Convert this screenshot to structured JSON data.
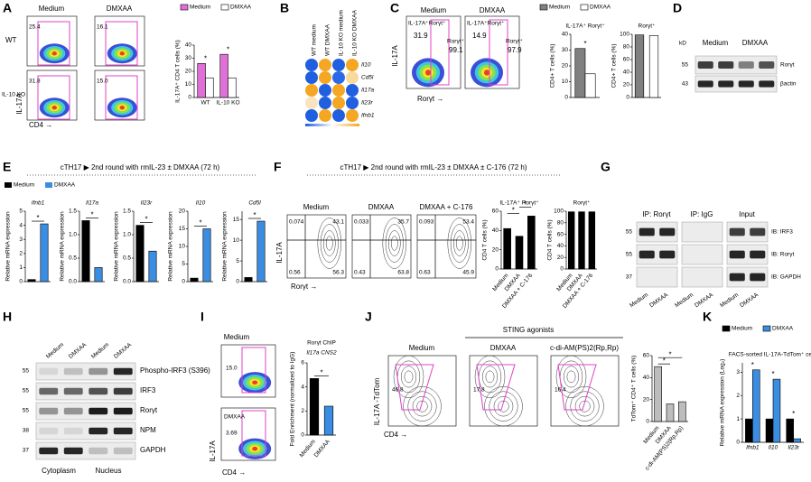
{
  "A": {
    "label": "A",
    "columns": [
      "Medium",
      "DMXAA"
    ],
    "rows": [
      "WT",
      "IL-10 KO"
    ],
    "y_axis": "IL-17A",
    "x_axis": "CD4 →",
    "gates": [
      "25.4",
      "16.1",
      "31.8",
      "15.0"
    ],
    "chart": {
      "ylabel": "IL-17A⁺ CD4 T cells (%)",
      "categories": [
        "WT",
        "IL-10 KO"
      ],
      "ylim": [
        0,
        40
      ],
      "yticks": [
        0,
        10,
        20,
        30,
        40
      ],
      "series": [
        {
          "name": "Medium",
          "color": "#e070d8",
          "values": [
            26,
            33
          ]
        },
        {
          "name": "DMXAA",
          "color": "#ffffff",
          "values": [
            15,
            15
          ]
        }
      ],
      "sig": "*"
    }
  },
  "B": {
    "label": "B",
    "columns": [
      "WT medium",
      "WT DMXAA",
      "IL-10 KO medium",
      "IL-10 KO DMXAA"
    ],
    "rows": [
      "Il10",
      "Cd5l",
      "Il17a",
      "Il23r",
      "Ifnb1"
    ],
    "colors": [
      [
        "#1f5fe0",
        "#f5a623",
        "#1f5fe0",
        "#f5a623"
      ],
      [
        "#1f5fe0",
        "#f5a623",
        "#2a6ae8",
        "#f8d9a0"
      ],
      [
        "#f5a623",
        "#1f5fe0",
        "#f5a623",
        "#1f5fe0"
      ],
      [
        "#f8e4c0",
        "#1f5fe0",
        "#f5a623",
        "#1f5fe0"
      ],
      [
        "#1f5fe0",
        "#f5a623",
        "#1f5fe0",
        "#f5a623"
      ]
    ]
  },
  "C": {
    "label": "C",
    "columns": [
      "Medium",
      "DMXAA"
    ],
    "gate_label": "IL-17A⁺Rorγt⁺",
    "gate_label2": "Rorγt⁺",
    "gates": [
      [
        "31.9",
        "99.1"
      ],
      [
        "14.9",
        "97.9"
      ]
    ],
    "y_axis": "IL-17A",
    "x_axis": "Rorγt →",
    "chart1": {
      "title": "IL-17A⁺ Rorγt⁺",
      "ylabel": "CD4+ T cells (%)",
      "ylim": [
        0,
        40
      ],
      "yticks": [
        0,
        10,
        20,
        30,
        40
      ],
      "series": [
        {
          "name": "Medium",
          "color": "#808080",
          "values": [
            31
          ]
        },
        {
          "name": "DMXAA",
          "color": "#ffffff",
          "values": [
            15
          ]
        }
      ],
      "sig": "*"
    },
    "chart2": {
      "title": "Rorγt⁺",
      "ylabel": "CD4+ T cells (%)",
      "ylim": [
        0,
        100
      ],
      "yticks": [
        0,
        20,
        40,
        60,
        80,
        100
      ],
      "values": [
        99,
        98
      ],
      "colors": [
        "#808080",
        "#ffffff"
      ]
    }
  },
  "D": {
    "label": "D",
    "unit": "kD",
    "lanes": [
      "Medium",
      "DMXAA"
    ],
    "markers": [
      "55",
      "43"
    ],
    "blots": [
      "Rorγt",
      "βactin"
    ]
  },
  "E": {
    "label": "E",
    "title": "cTH17 ▶ 2nd round with rmIL-23 ± DMXAA (72 h)",
    "legend": [
      {
        "name": "Medium",
        "color": "#000000"
      },
      {
        "name": "DMXAA",
        "color": "#3a8de0"
      }
    ],
    "charts": [
      {
        "title": "Ifnb1",
        "ylabel": "Relative mRNA expression",
        "ylim": [
          0,
          5
        ],
        "yticks": [
          0,
          1,
          2,
          3,
          4,
          5
        ],
        "values": [
          0.15,
          4.1
        ],
        "sig": "*"
      },
      {
        "title": "Il17a",
        "ylabel": "Relative mRNA expression",
        "ylim": [
          0,
          1.5
        ],
        "yticks": [
          {
            "value": 0,
            "label": "0.0"
          },
          0.5,
          {
            "value": 1,
            "label": "1.0"
          },
          1.5
        ],
        "values": [
          1.3,
          0.3
        ],
        "sig": "*"
      },
      {
        "title": "Il23r",
        "ylabel": "Relative mRNA expression",
        "ylim": [
          0,
          1.5
        ],
        "yticks": [
          {
            "value": 0,
            "label": "0.0"
          },
          0.5,
          {
            "value": 1,
            "label": "1.0"
          },
          1.5
        ],
        "values": [
          1.2,
          0.65
        ],
        "sig": "*"
      },
      {
        "title": "Il10",
        "ylabel": "Relative mRNA expression",
        "ylim": [
          0,
          20
        ],
        "yticks": [
          0,
          5,
          10,
          15,
          20
        ],
        "values": [
          1,
          15
        ],
        "sig": "*"
      },
      {
        "title": "Cd5l",
        "ylabel": "Relative mRNA expression",
        "ylim": [
          0,
          17
        ],
        "yticks": [
          0,
          5,
          10,
          15
        ],
        "values": [
          1,
          14.6
        ],
        "sig": "*"
      }
    ]
  },
  "F": {
    "label": "F",
    "title": "cTH17 ▶ 2nd round with rmIL-23 ± DMXAA ± C-176 (72 h)",
    "columns": [
      "Medium",
      "DMXAA",
      "DMXAA + C-176"
    ],
    "quadrants": [
      [
        "0.074",
        "43.1",
        "0.56",
        "56.3"
      ],
      [
        "0.033",
        "35.7",
        "0.43",
        "63.8"
      ],
      [
        "0.093",
        "53.4",
        "0.63",
        "45.9"
      ]
    ],
    "y_axis": "IL-17A",
    "x_axis": "Rorγt →",
    "chart1": {
      "title": "IL-17A⁺ Rorγt⁺",
      "ylabel": "CD4 T cells (%)",
      "categories": [
        "Medium",
        "DMXAA",
        "DMXAA + C-176"
      ],
      "ylim": [
        0,
        60
      ],
      "yticks": [
        0,
        20,
        40,
        60
      ],
      "values": [
        42,
        34,
        55
      ],
      "color": "#000000",
      "sig": "*"
    },
    "chart2": {
      "title": "Rorγt⁺",
      "ylabel": "CD4 T cells (%)",
      "categories": [
        "Medium",
        "DMXAA",
        "DMXAA + C-176"
      ],
      "ylim": [
        0,
        100
      ],
      "yticks": [
        0,
        20,
        40,
        60,
        80,
        100
      ],
      "values": [
        99,
        99,
        99
      ],
      "color": "#000000"
    }
  },
  "G": {
    "label": "G",
    "groups": [
      "IP: Rorγt",
      "IP: IgG",
      "Input"
    ],
    "markers": [
      "55",
      "55",
      "37"
    ],
    "blots": [
      "IB: IRF3",
      "IB: Rorγt",
      "IB: GAPDH"
    ],
    "lanes": [
      "Medium",
      "DMXAA"
    ]
  },
  "H": {
    "label": "H",
    "lanes": [
      "Medium",
      "DMXAA",
      "Medium",
      "DMXAA"
    ],
    "markers": [
      "55",
      "55",
      "55",
      "38",
      "37"
    ],
    "blots": [
      "Phospho-IRF3 (S396)",
      "IRF3",
      "Rorγt",
      "NPM",
      "GAPDH"
    ],
    "fractions": [
      "Cytoplasm",
      "Nucleus"
    ]
  },
  "I": {
    "label": "I",
    "columns": [
      "Medium",
      "DMXAA"
    ],
    "gates": [
      "15.0",
      "3.69"
    ],
    "y_axis": "IL-17A",
    "x_axis": "CD4 →",
    "chart": {
      "title": "Rorγt ChIP",
      "subtitle": "Il17a CNS2",
      "ylabel": "Fold Enrichment (normalized to IgG)",
      "categories": [
        "Medium",
        "DMXAA"
      ],
      "ylim": [
        0,
        6
      ],
      "yticks": [
        0,
        2,
        4,
        6
      ],
      "values": [
        4.7,
        2.4
      ],
      "colors": [
        "#000000",
        "#3a8de0"
      ],
      "sig": "*"
    }
  },
  "J": {
    "label": "J",
    "group": "STING agonists",
    "columns": [
      "Medium",
      "DMXAA",
      "c-di-AM(PS)2(Rp,Rp)"
    ],
    "gates": [
      "46.8",
      "17.8",
      "16.4"
    ],
    "y_axis": "IL-17A -TdTom",
    "x_axis": "CD4 →",
    "chart": {
      "ylabel": "TdTom⁺ CD4⁺ T cells (%)",
      "categories": [
        "Medium",
        "DMXAA",
        "c-di-AM(PS)2(Rp,Rp)"
      ],
      "ylim": [
        0,
        60
      ],
      "yticks": [
        0,
        20,
        40,
        60
      ],
      "values": [
        50,
        16,
        18
      ],
      "color": "#bdbdbd",
      "sig": "*"
    }
  },
  "K": {
    "label": "K",
    "chart": {
      "title": "FACS-sorted IL-17A-TdTom⁺ cells",
      "ylabel": "Relative mRNA expression (Log₂)",
      "categories": [
        "Ifnb1",
        "Il10",
        "Il23r"
      ],
      "ylim": [
        0,
        3.4
      ],
      "yticks": [
        0,
        1,
        2,
        3
      ],
      "series": [
        {
          "name": "Medium",
          "color": "#000000",
          "values": [
            1,
            1,
            1
          ]
        },
        {
          "name": "DMXAA",
          "color": "#3a8de0",
          "values": [
            3.1,
            2.7,
            0.15
          ]
        }
      ],
      "sig": "*"
    }
  }
}
